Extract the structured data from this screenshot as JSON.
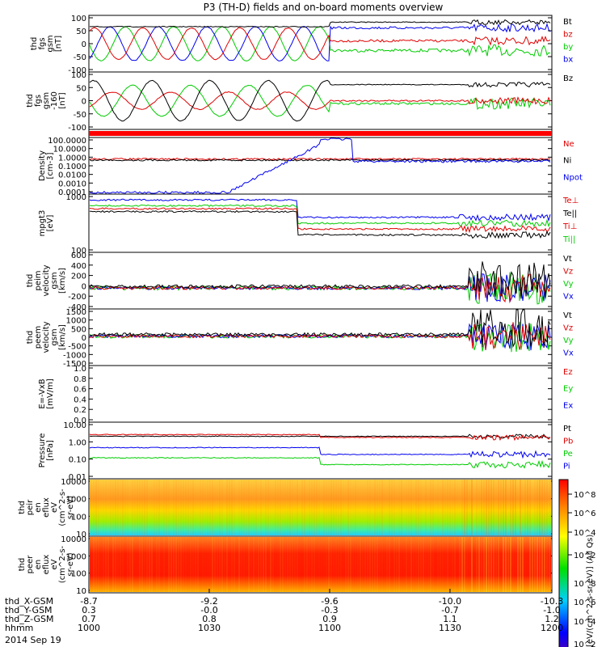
{
  "title": "P3 (TH-D) fields and on-board moments overview",
  "chart_data": [
    {
      "type": "line",
      "ylabel": [
        "thd",
        "fgs",
        "gsm",
        "[nT]"
      ],
      "yticks": [
        "100",
        "50",
        "0",
        "-50",
        "-100"
      ],
      "ylim": [
        -100,
        100
      ],
      "legend": [
        {
          "name": "Bt",
          "color": "#000000"
        },
        {
          "name": "bz",
          "color": "#e00000"
        },
        {
          "name": "by",
          "color": "#00cc00"
        },
        {
          "name": "bx",
          "color": "#0000ee"
        }
      ]
    },
    {
      "type": "line",
      "ylabel": [
        "thd",
        "fgs",
        "gsm",
        "-160",
        "[nT]"
      ],
      "yticks": [
        "100",
        "50",
        "0",
        "-50",
        "-100"
      ],
      "ylim": [
        -130,
        100
      ],
      "legend": [
        {
          "name": "Bz",
          "color": "#000000"
        }
      ]
    },
    {
      "type": "bar",
      "ylabel": [],
      "legend": []
    },
    {
      "type": "line",
      "ylabel": [
        "Density",
        "[cm-3]"
      ],
      "yticks": [
        "100.0000",
        "10.0000",
        "1.0000",
        "0.1000",
        "0.0100",
        "0.0010",
        "0.0001"
      ],
      "scale": "log",
      "legend": [
        {
          "name": "Ne",
          "color": "#e00000"
        },
        {
          "name": "Ni",
          "color": "#000000"
        },
        {
          "name": "Npot",
          "color": "#0000ee"
        }
      ]
    },
    {
      "type": "line",
      "ylabel": [
        "mpgt3",
        "[eV]"
      ],
      "yticks": [
        "1000",
        "100"
      ],
      "scale": "log",
      "legend": [
        {
          "name": "Te⊥",
          "color": "#e00000"
        },
        {
          "name": "Te||",
          "color": "#000000"
        },
        {
          "name": "Ti⊥",
          "color": "#e00000"
        },
        {
          "name": "Ti||",
          "color": "#00cc00"
        }
      ]
    },
    {
      "type": "line",
      "ylabel": [
        "thd",
        "peim",
        "velocity",
        "gsm",
        "[km/s]"
      ],
      "yticks": [
        "600",
        "400",
        "200",
        "0",
        "-200",
        "-400"
      ],
      "ylim": [
        -400,
        600
      ],
      "legend": [
        {
          "name": "Vt",
          "color": "#000000"
        },
        {
          "name": "Vz",
          "color": "#e00000"
        },
        {
          "name": "Vy",
          "color": "#00cc00"
        },
        {
          "name": "Vx",
          "color": "#0000ee"
        }
      ]
    },
    {
      "type": "line",
      "ylabel": [
        "thd",
        "peem",
        "velocity",
        "gsm",
        "[km/s]"
      ],
      "yticks": [
        "1500",
        "1000",
        "500",
        "0",
        "-500",
        "-1000",
        "-1500"
      ],
      "ylim": [
        -1500,
        1500
      ],
      "legend": [
        {
          "name": "Vt",
          "color": "#000000"
        },
        {
          "name": "Vz",
          "color": "#e00000"
        },
        {
          "name": "Vy",
          "color": "#00cc00"
        },
        {
          "name": "Vx",
          "color": "#0000ee"
        }
      ]
    },
    {
      "type": "line",
      "ylabel": [
        "E=-VxB",
        "[mV/m]"
      ],
      "yticks": [
        "1.0",
        "0.8",
        "0.6",
        "0.4",
        "0.2",
        "0.0"
      ],
      "ylim": [
        0,
        1
      ],
      "legend": [
        {
          "name": "Ez",
          "color": "#e00000"
        },
        {
          "name": "Ey",
          "color": "#00cc00"
        },
        {
          "name": "Ex",
          "color": "#0000ee"
        }
      ]
    },
    {
      "type": "line",
      "ylabel": [
        "Pressure",
        "[nPa]"
      ],
      "yticks": [
        "10.00",
        "1.00",
        "0.10",
        "0.01"
      ],
      "scale": "log",
      "legend": [
        {
          "name": "Pt",
          "color": "#000000"
        },
        {
          "name": "Pb",
          "color": "#e00000"
        },
        {
          "name": "Pe",
          "color": "#00cc00"
        },
        {
          "name": "Pi",
          "color": "#0000ee"
        }
      ]
    },
    {
      "type": "heatmap",
      "ylabel": [
        "thd",
        "peir",
        "en",
        "eflux",
        "eV",
        "(cm^2-s-",
        "sr-eV)"
      ],
      "yticks": [
        "10000",
        "1000",
        "100",
        "10"
      ],
      "scale": "log",
      "legend": []
    },
    {
      "type": "heatmap",
      "ylabel": [
        "thd",
        "peer",
        "en",
        "eflux",
        "eV",
        "(cm^2-s-",
        "sr-eV)"
      ],
      "yticks": [
        "10000",
        "1000",
        "100",
        "10"
      ],
      "scale": "log",
      "legend": []
    }
  ],
  "colorbar": {
    "label": "[eV/(cm^2-s-sr-eV)] (All Qs)",
    "ticks": [
      "10^8",
      "10^6",
      "10^4",
      "10^2"
    ]
  },
  "x_axis": {
    "rows": [
      {
        "label": "thd_X-GSM",
        "values": [
          "-8.7",
          "-9.2",
          "-9.6",
          "-10.0",
          "-10.3"
        ]
      },
      {
        "label": "thd_Y-GSM",
        "values": [
          "0.3",
          "-0.0",
          "-0.3",
          "-0.7",
          "-1.0"
        ]
      },
      {
        "label": "thd_Z-GSM",
        "values": [
          "0.7",
          "0.8",
          "0.9",
          "1.1",
          "1.2"
        ]
      },
      {
        "label": "hhmm",
        "values": [
          "1000",
          "1030",
          "1100",
          "1130",
          "1200"
        ]
      }
    ],
    "date": "2014 Sep 19"
  }
}
